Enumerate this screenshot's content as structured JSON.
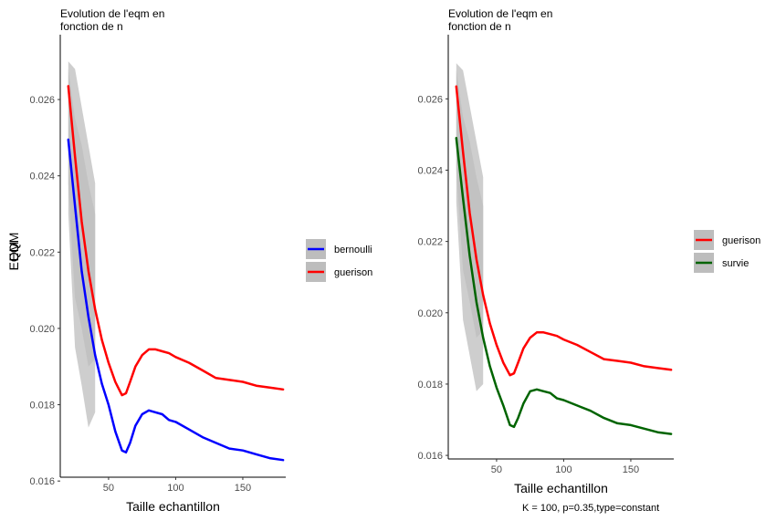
{
  "caption": "K = 100, p=0.35,type=constant",
  "chart_data": [
    {
      "type": "line",
      "title_line1": "Evolution de l'eqm en",
      "title_line2": "fonction de n",
      "xlabel": "Taille echantillon",
      "ylabel": "EQM",
      "xlim": [
        14,
        182
      ],
      "ylim": [
        0.0161,
        0.0277
      ],
      "xticks": [
        50,
        100,
        150
      ],
      "yticks": [
        0.016,
        0.018,
        0.02,
        0.022,
        0.024,
        0.026
      ],
      "ytick_labels": [
        "0.016",
        "0.018",
        "0.020",
        "0.022",
        "0.024",
        "0.026"
      ],
      "grid": false,
      "legend_position": "right",
      "band_color": "#bdbdbd",
      "series": [
        {
          "name": "bernoulli",
          "color": "#0000ff",
          "x": [
            20,
            25,
            30,
            35,
            40,
            45,
            50,
            55,
            60,
            63,
            66,
            70,
            75,
            80,
            85,
            90,
            95,
            100,
            110,
            120,
            130,
            140,
            150,
            160,
            170,
            180
          ],
          "y": [
            0.02495,
            0.0232,
            0.0215,
            0.0203,
            0.0193,
            0.01855,
            0.018,
            0.0173,
            0.0168,
            0.01675,
            0.017,
            0.01745,
            0.01775,
            0.01785,
            0.0178,
            0.01775,
            0.0176,
            0.01755,
            0.01735,
            0.01715,
            0.017,
            0.01685,
            0.0168,
            0.0167,
            0.0166,
            0.01655
          ],
          "band": {
            "x": [
              20,
              25,
              30,
              35,
              40
            ],
            "lower": [
              0.023,
              0.0195,
              0.0185,
              0.0174,
              0.0178
            ],
            "upper": [
              0.0268,
              0.0255,
              0.0248,
              0.0238,
              0.023
            ]
          }
        },
        {
          "name": "guerison",
          "color": "#ff0000",
          "x": [
            20,
            25,
            30,
            35,
            40,
            45,
            50,
            55,
            60,
            63,
            66,
            70,
            75,
            80,
            85,
            90,
            95,
            100,
            110,
            120,
            130,
            140,
            150,
            160,
            170,
            180
          ],
          "y": [
            0.02635,
            0.0245,
            0.0228,
            0.0215,
            0.0205,
            0.0197,
            0.0191,
            0.0186,
            0.01825,
            0.0183,
            0.0186,
            0.019,
            0.0193,
            0.01945,
            0.01945,
            0.0194,
            0.01935,
            0.01925,
            0.0191,
            0.0189,
            0.0187,
            0.01865,
            0.0186,
            0.0185,
            0.01845,
            0.0184
          ],
          "band": {
            "x": [
              20,
              25,
              30,
              35,
              40
            ],
            "lower": [
              0.0238,
              0.0208,
              0.02,
              0.019,
              0.0192
            ],
            "upper": [
              0.027,
              0.0268,
              0.0258,
              0.0248,
              0.0238
            ]
          }
        }
      ]
    },
    {
      "type": "line",
      "title_line1": "Evolution de l'eqm en",
      "title_line2": "fonction de n",
      "xlabel": "Taille echantillon",
      "ylabel": "EQM",
      "xlim": [
        14,
        182
      ],
      "ylim": [
        0.0159,
        0.0278
      ],
      "xticks": [
        50,
        100,
        150
      ],
      "yticks": [
        0.016,
        0.018,
        0.02,
        0.022,
        0.024,
        0.026
      ],
      "ytick_labels": [
        "0.016",
        "0.018",
        "0.020",
        "0.022",
        "0.024",
        "0.026"
      ],
      "grid": false,
      "legend_position": "right",
      "band_color": "#bdbdbd",
      "series": [
        {
          "name": "guerison",
          "color": "#ff0000",
          "x": [
            20,
            25,
            30,
            35,
            40,
            45,
            50,
            55,
            60,
            63,
            66,
            70,
            75,
            80,
            85,
            90,
            95,
            100,
            110,
            120,
            130,
            140,
            150,
            160,
            170,
            180
          ],
          "y": [
            0.02635,
            0.0245,
            0.0228,
            0.0215,
            0.0205,
            0.0197,
            0.0191,
            0.0186,
            0.01825,
            0.0183,
            0.0186,
            0.019,
            0.0193,
            0.01945,
            0.01945,
            0.0194,
            0.01935,
            0.01925,
            0.0191,
            0.0189,
            0.0187,
            0.01865,
            0.0186,
            0.0185,
            0.01845,
            0.0184
          ],
          "band": {
            "x": [
              20,
              25,
              30,
              35,
              40
            ],
            "lower": [
              0.024,
              0.0212,
              0.0203,
              0.0193,
              0.0195
            ],
            "upper": [
              0.027,
              0.0268,
              0.0258,
              0.0248,
              0.0238
            ]
          }
        },
        {
          "name": "survie",
          "color": "#006400",
          "x": [
            20,
            25,
            30,
            35,
            40,
            45,
            50,
            55,
            60,
            63,
            66,
            70,
            75,
            80,
            85,
            90,
            95,
            100,
            110,
            120,
            130,
            140,
            150,
            160,
            170,
            180
          ],
          "y": [
            0.0249,
            0.0232,
            0.0216,
            0.0203,
            0.0193,
            0.0185,
            0.0179,
            0.0174,
            0.01685,
            0.0168,
            0.01705,
            0.01745,
            0.0178,
            0.01785,
            0.0178,
            0.01775,
            0.0176,
            0.01755,
            0.0174,
            0.01725,
            0.01705,
            0.0169,
            0.01685,
            0.01675,
            0.01665,
            0.0166
          ],
          "band": {
            "x": [
              20,
              25,
              30,
              35,
              40
            ],
            "lower": [
              0.0231,
              0.0198,
              0.0188,
              0.0178,
              0.018
            ],
            "upper": [
              0.0268,
              0.0255,
              0.0248,
              0.0238,
              0.023
            ]
          }
        }
      ]
    }
  ]
}
